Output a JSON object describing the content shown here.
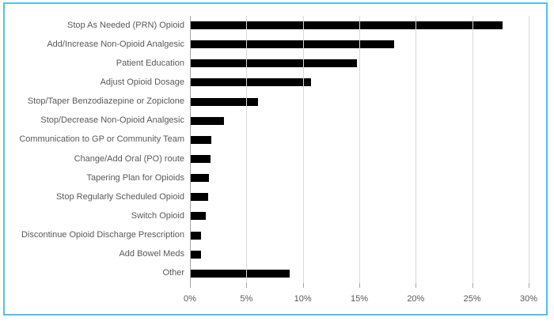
{
  "chart_data": {
    "type": "bar",
    "orientation": "horizontal",
    "title": "",
    "xlabel": "",
    "ylabel": "",
    "categories": [
      "Stop As Needed (PRN) Opioid",
      "Add/Increase Non-Opioid Analgesic",
      "Patient Education",
      "Adjust Opioid Dosage",
      "Stop/Taper Benzodiazepine or Zopiclone",
      "Stop/Decrease Non-Opioid Analgesic",
      "Communication to GP or Community Team",
      "Change/Add Oral (PO) route",
      "Tapering Plan for Opioids",
      "Stop Regularly Scheduled Opioid",
      "Switch Opioid",
      "Discontinue Opioid Discharge Prescription",
      "Add Bowel Meds",
      "Other"
    ],
    "values": [
      27.7,
      18.1,
      14.8,
      10.7,
      6.0,
      3.0,
      1.9,
      1.8,
      1.7,
      1.6,
      1.4,
      1.0,
      1.0,
      8.8
    ],
    "xlim": [
      0,
      30
    ],
    "x_ticks": [
      {
        "value": 0,
        "label": "0%"
      },
      {
        "value": 5,
        "label": "5%"
      },
      {
        "value": 10,
        "label": "10%"
      },
      {
        "value": 15,
        "label": "15%"
      },
      {
        "value": 20,
        "label": "20%"
      },
      {
        "value": 25,
        "label": "25%"
      },
      {
        "value": 30,
        "label": "30%"
      }
    ],
    "grid": true,
    "legend": false
  },
  "colors": {
    "background": "#FFFFFF",
    "border": "#4FC3EA",
    "bar": "#000000",
    "gridline": "#D9D9D9",
    "axis_line": "#A6A6A6",
    "label_text": "#595959"
  }
}
